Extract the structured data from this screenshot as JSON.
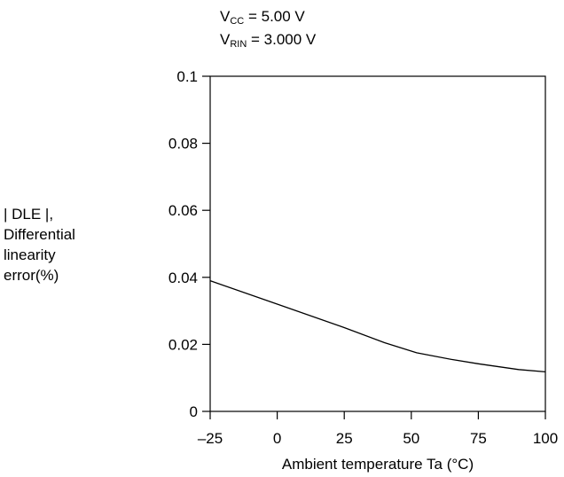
{
  "conditions": {
    "line1": {
      "prefix": "V",
      "sub": "CC",
      "value": " = 5.00 V"
    },
    "line2": {
      "prefix": "V",
      "sub": "RIN",
      "value": " = 3.000 V"
    }
  },
  "chart_data": {
    "type": "line",
    "title": "",
    "xlabel": "Ambient temperature Ta (°C)",
    "ylabel_lines": [
      "| DLE |,",
      "Differential",
      "linearity",
      "error(%)"
    ],
    "xlim": [
      -25,
      100
    ],
    "ylim": [
      0,
      0.1
    ],
    "x_ticks": [
      -25,
      0,
      25,
      50,
      75,
      100
    ],
    "x_tick_labels": [
      "–25",
      "0",
      "25",
      "50",
      "75",
      "100"
    ],
    "y_ticks": [
      0,
      0.02,
      0.04,
      0.06,
      0.08,
      0.1
    ],
    "y_tick_labels": [
      "0",
      "0.02",
      "0.04",
      "0.06",
      "0.08",
      "0.1"
    ],
    "grid": false,
    "series": [
      {
        "x": [
          -25,
          0,
          25,
          40,
          52,
          65,
          75,
          90,
          100
        ],
        "y": [
          0.039,
          0.032,
          0.025,
          0.0205,
          0.0175,
          0.0155,
          0.0142,
          0.0125,
          0.0118
        ]
      }
    ]
  }
}
